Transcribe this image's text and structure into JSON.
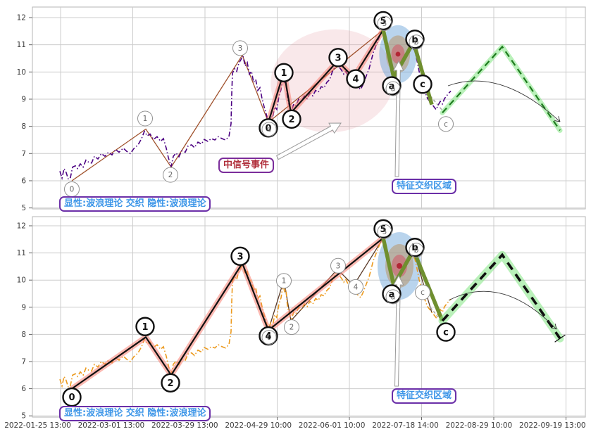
{
  "annotations": {
    "wave_theory": {
      "text": "显性:波浪理论 交织 隐性:波浪理论"
    },
    "signal_event": {
      "text": "中信号事件"
    },
    "feature_zone": {
      "text": "特征交织区域"
    }
  },
  "colors": {
    "grid": "#cccccc",
    "frame": "#b5b5b5",
    "tick_text": "#3a3a3a",
    "price_top": "#4B0082",
    "price_bottom": "#EC9A1E",
    "thin_wave_top": "#A0522D",
    "thin_wave_bottom": "#5A3A28",
    "bold_wave": "#111111",
    "salmon_glow": "rgba(250,128,114,0.55)",
    "olive": "#6F8F2F",
    "silver_dash": "#aaaaaa",
    "proj_top": "#1E7B1E",
    "proj_bottom": "#101010",
    "proj_glow": "rgba(130,230,130,0.55)",
    "pink_zone": "rgba(228,148,160,0.22)",
    "ellipse_blue": "rgba(100,160,215,0.45)",
    "ellipse_tan": "rgba(185,150,105,0.55)",
    "ellipse_red": "rgba(210,85,100,0.55)",
    "ellipse_dot": "#B22735",
    "circle_bold": "#111111",
    "circle_thin": "#909090",
    "curve": "#333333",
    "arrow_outline": "#9a9a9a"
  },
  "chart_data": {
    "type": "line",
    "title": "",
    "xlabel": "",
    "ylabel": "",
    "ylim": [
      5,
      12
    ],
    "grid": true,
    "y_ticks": [
      "12",
      "11",
      "10",
      "9",
      "8",
      "7",
      "6",
      "5"
    ],
    "y_tick_values": [
      12,
      11,
      10,
      9,
      8,
      7,
      6,
      5
    ],
    "x_tick_labels": [
      "2022-01-25 13:00",
      "2022-03-01 13:00",
      "2022-03-29 13:00",
      "2022-04-29 10:00",
      "2022-06-01 10:00",
      "2022-07-18 14:00",
      "2022-08-29 10:00",
      "2022-09-19 13:00"
    ],
    "wave_big": {
      "name": "波浪理论 large count",
      "labels": [
        "0",
        "1",
        "2",
        "3",
        "4",
        "5",
        "a",
        "b",
        "c"
      ],
      "xv": [
        [
          102,
          6.0
        ],
        [
          207,
          7.9
        ],
        [
          243,
          6.5
        ],
        [
          344,
          10.62
        ],
        [
          381,
          8.15
        ],
        [
          544,
          11.55
        ],
        [
          559,
          9.8
        ],
        [
          587,
          11.1
        ],
        [
          628,
          8.5
        ]
      ]
    },
    "wave_small": {
      "name": "波浪理论 nested count",
      "labels": [
        "0",
        "1",
        "2",
        "3",
        "4",
        "5",
        "a",
        "b",
        "c"
      ],
      "xv": [
        [
          381,
          8.15
        ],
        [
          403,
          10.0
        ],
        [
          413,
          8.5
        ],
        [
          479,
          10.4
        ],
        [
          502,
          9.8
        ],
        [
          544,
          11.55
        ],
        [
          559,
          9.8
        ],
        [
          587,
          11.1
        ],
        [
          613,
          8.8
        ]
      ]
    },
    "projection_xv": [
      [
        628,
        8.5
      ],
      [
        713,
        10.93
      ],
      [
        795,
        7.85
      ]
    ],
    "price_xv": [
      [
        85,
        6.35
      ],
      [
        88,
        6.1
      ],
      [
        91,
        6.45
      ],
      [
        94,
        6.3
      ],
      [
        97,
        6.05
      ],
      [
        100,
        6.12
      ],
      [
        103,
        6.5
      ],
      [
        107,
        6.55
      ],
      [
        110,
        6.45
      ],
      [
        114,
        6.62
      ],
      [
        118,
        6.5
      ],
      [
        122,
        6.76
      ],
      [
        126,
        6.68
      ],
      [
        130,
        6.65
      ],
      [
        134,
        6.9
      ],
      [
        139,
        6.8
      ],
      [
        144,
        7.0
      ],
      [
        149,
        6.9
      ],
      [
        154,
        7.05
      ],
      [
        159,
        6.95
      ],
      [
        164,
        7.15
      ],
      [
        169,
        7.05
      ],
      [
        175,
        7.2
      ],
      [
        180,
        7.08
      ],
      [
        185,
        7.0
      ],
      [
        190,
        7.18
      ],
      [
        196,
        7.32
      ],
      [
        201,
        7.55
      ],
      [
        205,
        7.82
      ],
      [
        209,
        7.65
      ],
      [
        213,
        7.72
      ],
      [
        218,
        7.52
      ],
      [
        223,
        7.62
      ],
      [
        228,
        7.45
      ],
      [
        232,
        7.55
      ],
      [
        236,
        7.2
      ],
      [
        239,
        6.85
      ],
      [
        243,
        6.52
      ],
      [
        246,
        6.9
      ],
      [
        250,
        7.02
      ],
      [
        254,
        6.88
      ],
      [
        258,
        7.1
      ],
      [
        263,
        7.05
      ],
      [
        267,
        7.28
      ],
      [
        272,
        7.32
      ],
      [
        276,
        7.22
      ],
      [
        281,
        7.42
      ],
      [
        286,
        7.35
      ],
      [
        290,
        7.52
      ],
      [
        295,
        7.45
      ],
      [
        300,
        7.55
      ],
      [
        305,
        7.5
      ],
      [
        310,
        7.62
      ],
      [
        315,
        7.55
      ],
      [
        320,
        7.5
      ],
      [
        325,
        7.62
      ],
      [
        328,
        8.1
      ],
      [
        329,
        9.2
      ],
      [
        330,
        9.95
      ],
      [
        333,
        10.12
      ],
      [
        336,
        10.02
      ],
      [
        339,
        10.32
      ],
      [
        342,
        10.45
      ],
      [
        345,
        10.58
      ],
      [
        348,
        10.22
      ],
      [
        351,
        10.35
      ],
      [
        354,
        9.92
      ],
      [
        357,
        10.02
      ],
      [
        360,
        9.62
      ],
      [
        363,
        9.72
      ],
      [
        366,
        9.32
      ],
      [
        369,
        9.42
      ],
      [
        372,
        9.02
      ],
      [
        375,
        8.72
      ],
      [
        378,
        8.45
      ],
      [
        381,
        8.18
      ],
      [
        384,
        8.42
      ],
      [
        387,
        8.32
      ],
      [
        390,
        8.72
      ],
      [
        393,
        8.62
      ],
      [
        396,
        9.12
      ],
      [
        399,
        9.35
      ],
      [
        402,
        9.88
      ],
      [
        404,
        9.55
      ],
      [
        406,
        9.65
      ],
      [
        408,
        9.05
      ],
      [
        410,
        8.82
      ],
      [
        412,
        8.66
      ],
      [
        414,
        8.58
      ],
      [
        417,
        8.82
      ],
      [
        420,
        8.76
      ],
      [
        424,
        9.0
      ],
      [
        428,
        8.92
      ],
      [
        432,
        9.12
      ],
      [
        436,
        9.02
      ],
      [
        440,
        9.22
      ],
      [
        444,
        9.12
      ],
      [
        448,
        9.32
      ],
      [
        452,
        9.26
      ],
      [
        456,
        9.46
      ],
      [
        460,
        9.42
      ],
      [
        464,
        9.62
      ],
      [
        468,
        9.72
      ],
      [
        472,
        10.02
      ],
      [
        476,
        10.22
      ],
      [
        479,
        10.36
      ],
      [
        482,
        10.16
      ],
      [
        485,
        10.06
      ],
      [
        488,
        9.92
      ],
      [
        491,
        10.02
      ],
      [
        494,
        9.86
      ],
      [
        497,
        9.96
      ],
      [
        500,
        9.9
      ],
      [
        503,
        9.72
      ],
      [
        506,
        9.52
      ],
      [
        509,
        9.42
      ],
      [
        512,
        9.36
      ],
      [
        515,
        9.52
      ],
      [
        518,
        9.72
      ],
      [
        521,
        9.92
      ],
      [
        524,
        10.12
      ],
      [
        527,
        10.42
      ],
      [
        530,
        10.72
      ],
      [
        533,
        10.92
      ],
      [
        536,
        11.12
      ],
      [
        539,
        11.32
      ],
      [
        542,
        11.48
      ],
      [
        544,
        11.5
      ],
      [
        546,
        11.22
      ],
      [
        548,
        10.92
      ],
      [
        551,
        10.62
      ],
      [
        554,
        10.22
      ],
      [
        557,
        9.92
      ],
      [
        560,
        9.65
      ],
      [
        563,
        9.82
      ],
      [
        566,
        10.02
      ],
      [
        569,
        10.22
      ],
      [
        572,
        10.42
      ],
      [
        575,
        10.52
      ],
      [
        578,
        10.72
      ],
      [
        582,
        10.82
      ],
      [
        586,
        10.88
      ],
      [
        589,
        10.78
      ],
      [
        592,
        10.42
      ],
      [
        595,
        10.02
      ],
      [
        598,
        9.72
      ],
      [
        601,
        9.42
      ],
      [
        604,
        9.22
      ],
      [
        607,
        9.02
      ],
      [
        610,
        8.92
      ],
      [
        613,
        8.82
      ],
      [
        616,
        8.72
      ],
      [
        619,
        8.62
      ],
      [
        622,
        8.78
      ],
      [
        625,
        8.92
      ],
      [
        628,
        8.82
      ],
      [
        631,
        9.02
      ],
      [
        634,
        9.12
      ],
      [
        637,
        9.22
      ],
      [
        640,
        9.3
      ]
    ],
    "panels": [
      {
        "name": "explicit-nested-wave-panel",
        "bold_count": "small",
        "thin_count": "big",
        "price_color_key": "price_top"
      },
      {
        "name": "explicit-large-wave-panel",
        "bold_count": "big",
        "thin_count": "small",
        "price_color_key": "price_bottom"
      }
    ],
    "legend_position": "none"
  }
}
